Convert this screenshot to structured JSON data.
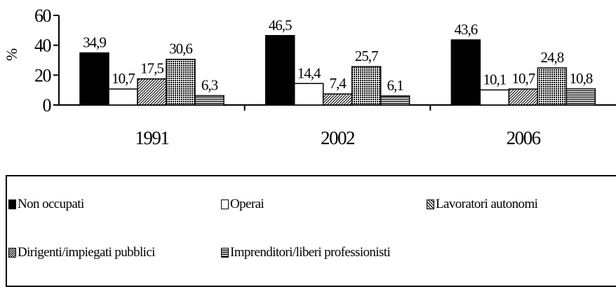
{
  "chart_data": {
    "type": "bar",
    "ylabel": "%",
    "ylim": [
      0,
      60
    ],
    "yticks": [
      "0",
      "20",
      "40",
      "60"
    ],
    "categories": [
      "1991",
      "2002",
      "2006"
    ],
    "series": [
      {
        "name": "Non occupati",
        "values": [
          34.9,
          46.5,
          43.6
        ],
        "labels": [
          "34,9",
          "46,5",
          "43,6"
        ],
        "color": "#000000",
        "pattern": "solid"
      },
      {
        "name": "Operai",
        "values": [
          10.7,
          14.4,
          10.1
        ],
        "labels": [
          "10,7",
          "14,4",
          "10,1"
        ],
        "color": "#ffffff",
        "pattern": "none"
      },
      {
        "name": "Lavoratori autonomi",
        "values": [
          17.5,
          7.4,
          10.7
        ],
        "labels": [
          "17,5",
          "7,4",
          "10,7"
        ],
        "color": "#9a9a9a",
        "pattern": "diagonal"
      },
      {
        "name": "Dirigenti/impiegati pubblici",
        "values": [
          30.6,
          25.7,
          24.8
        ],
        "labels": [
          "30,6",
          "25,7",
          "24,8"
        ],
        "color": "#8c8c8c",
        "pattern": "crosshatch"
      },
      {
        "name": "Imprenditori/liberi professionisti",
        "values": [
          6.3,
          6.1,
          10.8
        ],
        "labels": [
          "6,3",
          "6,1",
          "10,8"
        ],
        "color": "#9a9a9a",
        "pattern": "horizontal"
      }
    ],
    "legend_position": "bottom",
    "grid": false
  }
}
